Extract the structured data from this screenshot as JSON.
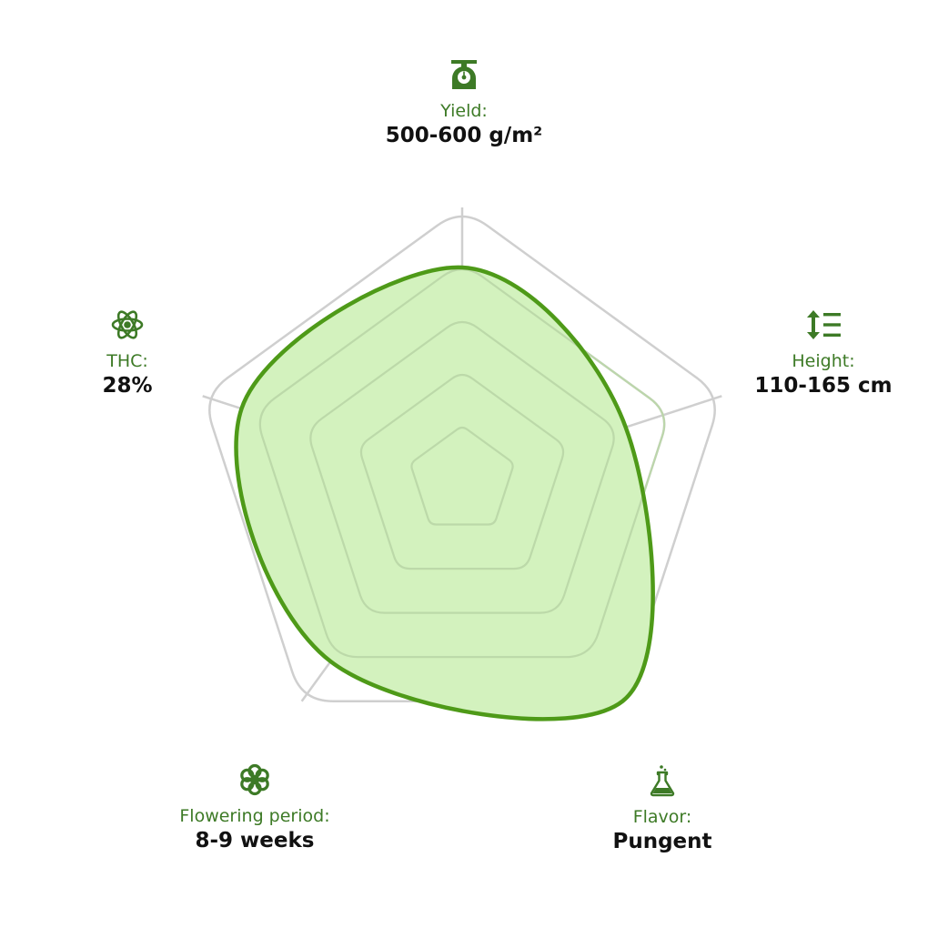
{
  "colors": {
    "accent": "#3d7a26",
    "line": "#4e9a18",
    "fill": "#d3f2be",
    "grid": "#cfcfcf",
    "inner_grid": "#b9d6a6"
  },
  "chart_data": {
    "type": "radar",
    "title": "",
    "axes": [
      {
        "label": "Yield:",
        "value": "500-600 g/m²",
        "icon": "scale-icon"
      },
      {
        "label": "Height:",
        "value": "110-165 cm",
        "icon": "height-icon"
      },
      {
        "label": "Flavor:",
        "value": "Pungent",
        "icon": "flask-icon"
      },
      {
        "label": "Flowering period:",
        "value": "8-9 weeks",
        "icon": "flower-icon"
      },
      {
        "label": "THC:",
        "value": "28%",
        "icon": "atom-icon"
      }
    ],
    "range": [
      0,
      1
    ],
    "gridlines": [
      0.2,
      0.4,
      0.6,
      0.8,
      1.0
    ],
    "scores": [
      0.78,
      0.63,
      1.0,
      0.82,
      0.85
    ],
    "grid": true
  }
}
